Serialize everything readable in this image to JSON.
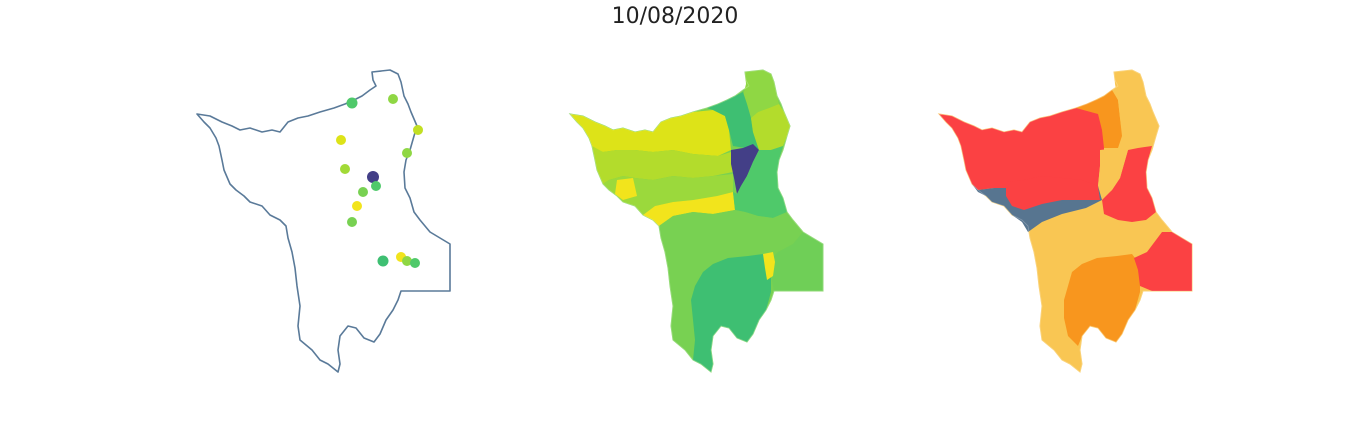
{
  "figure": {
    "title": "10/08/2020"
  },
  "maps": [
    {
      "name": "station-points-map",
      "kind": "outline-with-points"
    },
    {
      "name": "choropleth-greens-map",
      "kind": "choropleth"
    },
    {
      "name": "choropleth-reds-map",
      "kind": "choropleth"
    }
  ],
  "colors": {
    "outline": "#5a7a99",
    "dark_purple": "#433f87",
    "viridis_green": "#3ebf72",
    "green": "#4fc96a",
    "mid_green": "#78d152",
    "lime": "#b3dc2c",
    "yellow_green": "#dde318",
    "yellow": "#f2e41c",
    "red": "#fb4143",
    "orange": "#f8961e",
    "light_orange": "#f9c653",
    "slate": "#577590"
  }
}
